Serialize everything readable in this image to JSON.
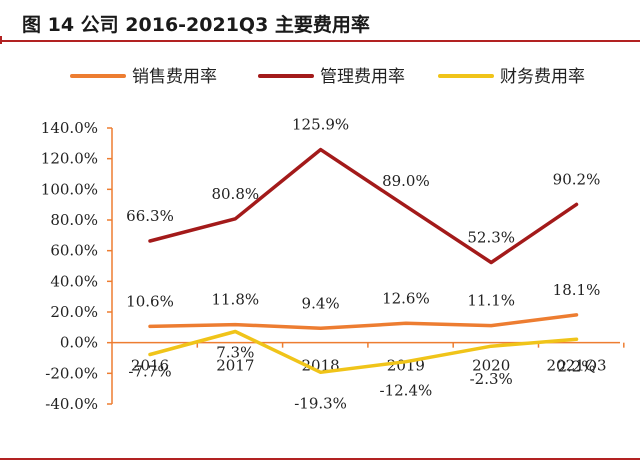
{
  "figure_title": "图 14 公司 2016-2021Q3 主要费用率",
  "chart_data": {
    "type": "line",
    "categories": [
      "2016",
      "2017",
      "2018",
      "2019",
      "2020",
      "2021Q3"
    ],
    "ylim": [
      -40,
      140
    ],
    "yticks": [
      -40,
      -20,
      0,
      20,
      40,
      60,
      80,
      100,
      120,
      140
    ],
    "ytick_labels": [
      "-40.0%",
      "-20.0%",
      "0.0%",
      "20.0%",
      "40.0%",
      "60.0%",
      "80.0%",
      "100.0%",
      "120.0%",
      "140.0%"
    ],
    "legend_position": "top",
    "series": [
      {
        "name": "销售费用率",
        "color": "#ed7d31",
        "values": [
          10.6,
          11.8,
          9.4,
          12.6,
          11.1,
          18.1
        ],
        "labels": [
          "10.6%",
          "11.8%",
          "9.4%",
          "12.6%",
          "11.1%",
          "18.1%"
        ]
      },
      {
        "name": "管理费用率",
        "color": "#a31a1a",
        "values": [
          66.3,
          80.8,
          125.9,
          89.0,
          52.3,
          90.2
        ],
        "labels": [
          "66.3%",
          "80.8%",
          "125.9%",
          "89.0%",
          "52.3%",
          "90.2%"
        ]
      },
      {
        "name": "财务费用率",
        "color": "#f0c419",
        "values": [
          -7.7,
          7.3,
          -19.3,
          -12.4,
          -2.3,
          2.2
        ],
        "labels": [
          "-7.7%",
          "7.3%",
          "-19.3%",
          "-12.4%",
          "-2.3%",
          "2.2%"
        ]
      }
    ]
  }
}
